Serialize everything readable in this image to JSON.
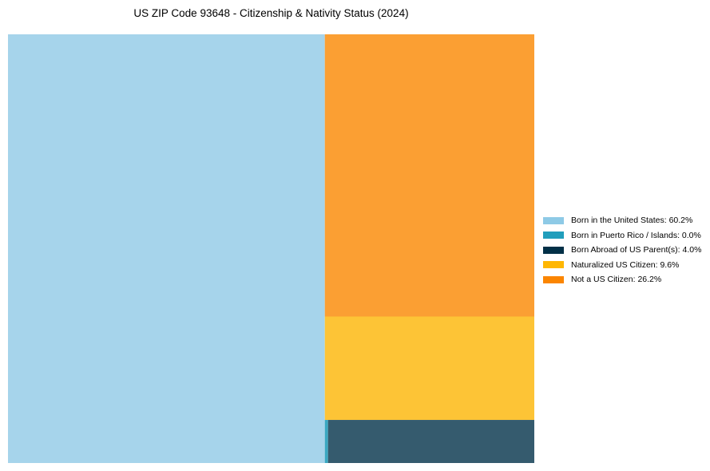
{
  "chart_data": {
    "type": "treemap",
    "title": "US ZIP Code 93648 - Citizenship & Nativity Status (2024)",
    "unit": "%",
    "series": [
      {
        "name": "Born in the United States",
        "value": 60.2,
        "color": "#a6d4eb",
        "legend_color": "#8ecae6",
        "legend": "Born in the United States: 60.2%"
      },
      {
        "name": "Born in Puerto Rico / Islands",
        "value": 0.0,
        "color": "#3aa8c1",
        "legend_color": "#219ebc",
        "legend": "Born in Puerto Rico / Islands: 0.0%"
      },
      {
        "name": "Born Abroad of US Parent(s)",
        "value": 4.0,
        "color": "#355b6e",
        "legend_color": "#023047",
        "legend": "Born Abroad of US Parent(s): 4.0%"
      },
      {
        "name": "Naturalized US Citizen",
        "value": 9.6,
        "color": "#fdc436",
        "legend_color": "#ffb703",
        "legend": "Naturalized US Citizen: 9.6%"
      },
      {
        "name": "Not a US Citizen",
        "value": 26.2,
        "color": "#fb9f33",
        "legend_color": "#fb8500",
        "legend": "Not a US Citizen: 26.2%"
      }
    ]
  }
}
